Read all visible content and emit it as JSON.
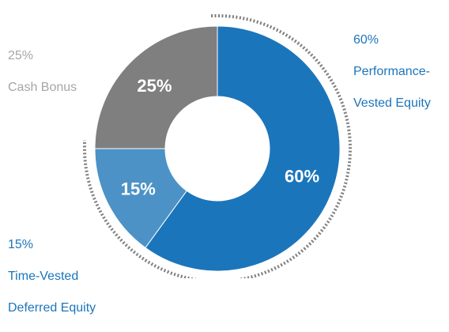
{
  "chart_data": {
    "type": "pie",
    "variant": "donut",
    "start_angle_deg": 0,
    "direction": "clockwise",
    "slices": [
      {
        "name_lines": [
          "Performance-",
          "Vested Equity"
        ],
        "value": 60,
        "inner_label": "60%",
        "outer_pct": "60%",
        "color": "#1b75bb",
        "outer_label_color": "#1b75bb"
      },
      {
        "name_lines": [
          "Time-Vested",
          "Deferred Equity"
        ],
        "value": 15,
        "inner_label": "15%",
        "outer_pct": "15%",
        "color": "#4c92c7",
        "outer_label_color": "#1b75bb"
      },
      {
        "name_lines": [
          "Cash Bonus"
        ],
        "value": 25,
        "inner_label": "25%",
        "outer_pct": "25%",
        "color": "#7f7f7f",
        "outer_label_color": "#a6a6a6"
      }
    ],
    "equity_bracket": {
      "style": "dotted",
      "color": "#7f7f7f",
      "spans_slices": [
        0,
        1
      ]
    }
  }
}
